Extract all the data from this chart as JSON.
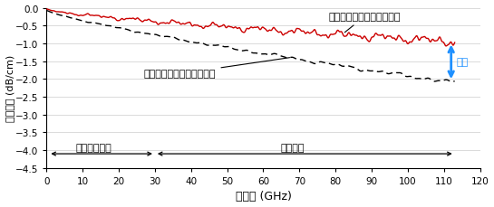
{
  "xlabel": "周波数 (GHz)",
  "ylabel": "伝送特性 (dB/cm)",
  "xlim": [
    0,
    120
  ],
  "ylim": [
    -4.5,
    0
  ],
  "xticks": [
    0,
    10,
    20,
    30,
    40,
    50,
    60,
    70,
    80,
    90,
    100,
    110,
    120
  ],
  "yticks": [
    0,
    -0.5,
    -1,
    -1.5,
    -2,
    -2.5,
    -3,
    -3.5,
    -4,
    -4.5
  ],
  "label_printed": "印刷技術で作製した伝送路",
  "label_conventional": "従来技術で作製した伝送路",
  "label_micro": "マイクロ波帯",
  "label_milli": "ミリ波帯",
  "label_improvement": "改善",
  "color_printed": "#cc0000",
  "color_conventional": "#000000",
  "color_arrow": "#1e90ff",
  "background_color": "#ffffff"
}
